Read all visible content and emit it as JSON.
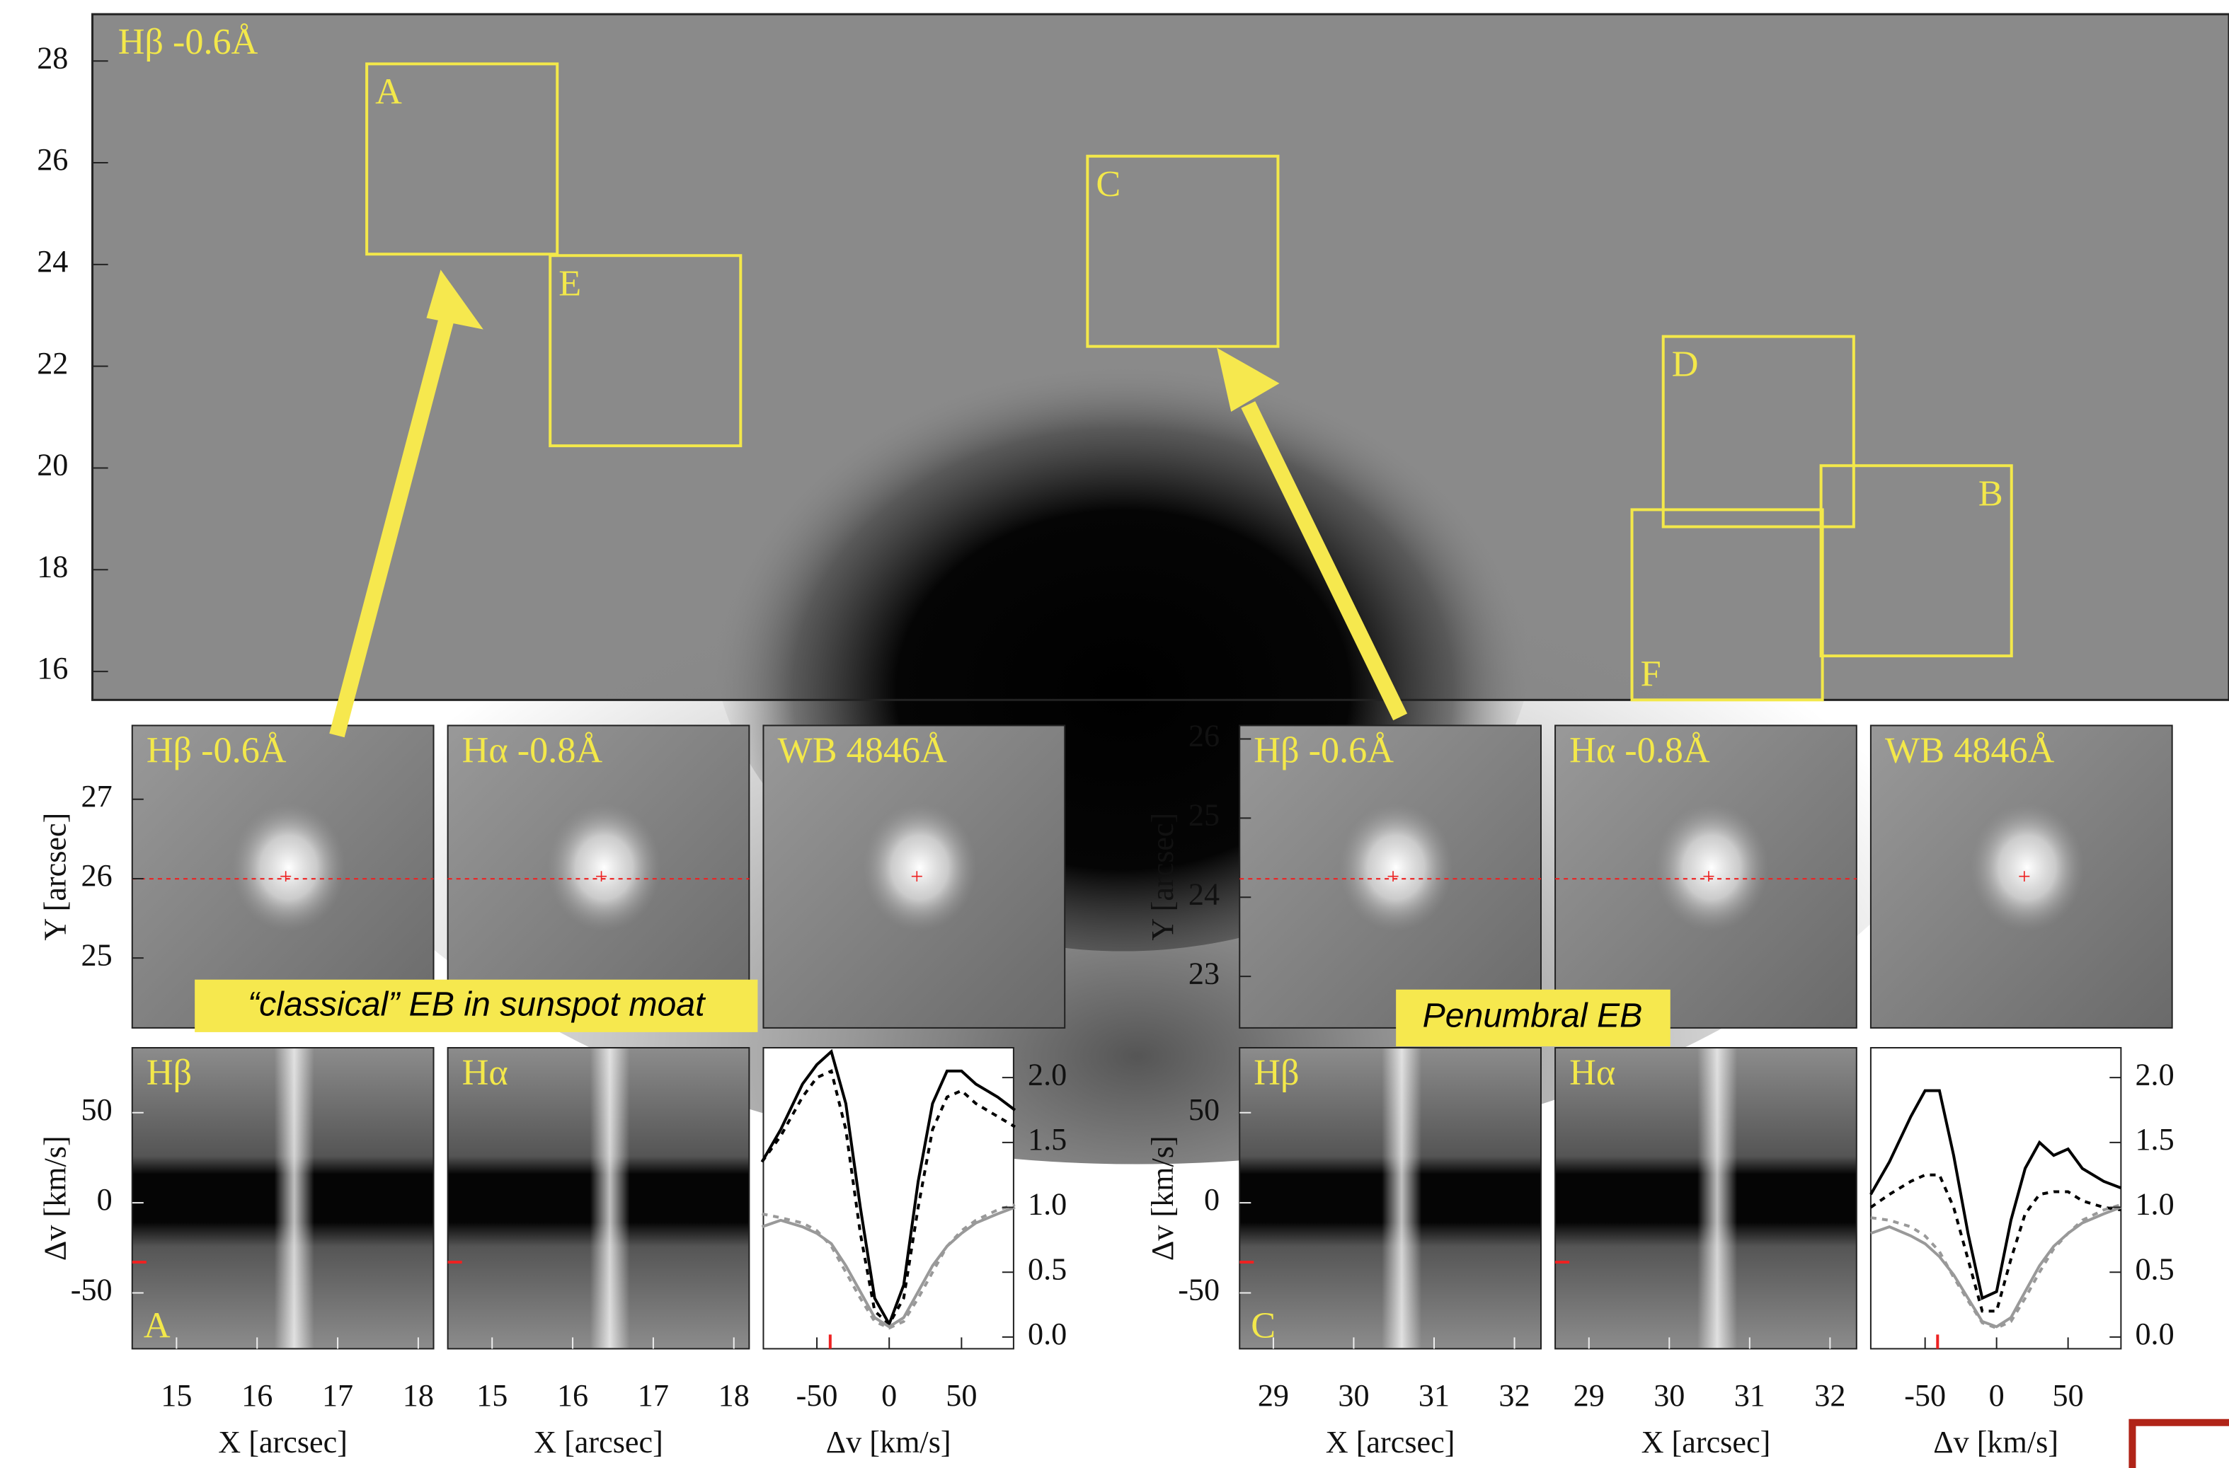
{
  "overview": {
    "label": "Hβ -0.6Å",
    "ylim": [
      15.44,
      28.92
    ],
    "yticks": [
      16,
      18,
      20,
      22,
      24,
      26,
      28
    ],
    "boxes": [
      "A",
      "E",
      "C",
      "D",
      "B",
      "F"
    ]
  },
  "groups": [
    {
      "images": [
        "Hβ -0.6Å",
        "Hα -0.8Å",
        "WB 4846Å"
      ],
      "ylabel": "Y [arcsec]",
      "ylim": [
        24.12,
        27.93
      ],
      "yticks": [
        25,
        26,
        27
      ],
      "xlabel": "X [arcsec]",
      "xlim": [
        14.45,
        18.19
      ],
      "xticks": [
        15,
        16,
        17,
        18
      ],
      "spectra": [
        "Hβ",
        "Hα"
      ],
      "box_label": "A",
      "dv_label": "Δv [km/s]",
      "dvlim": [
        -81,
        86
      ],
      "dvticks": [
        -50,
        0,
        50
      ],
      "callout": "“classical” EB in sunspot moat",
      "profile": {
        "xlabel": "Δv [km/s]",
        "xlim": [
          -87,
          86
        ],
        "xticks": [
          -50,
          0,
          50
        ],
        "ylim": [
          -0.09,
          2.23
        ],
        "yticks": [
          {
            "value": 0,
            "label": "0.0"
          },
          0.5,
          {
            "value": 1,
            "label": "1.0"
          },
          1.5,
          {
            "value": 2,
            "label": "2.0"
          }
        ],
        "x": [
          -88,
          -75,
          -60,
          -50,
          -40,
          -30,
          -20,
          -10,
          0,
          10,
          20,
          30,
          40,
          50,
          60,
          75,
          87
        ],
        "series": [
          {
            "color": "#000000",
            "dashed": false,
            "values": [
              1.35,
              1.6,
              1.95,
              2.1,
              2.2,
              1.8,
              1.0,
              0.3,
              0.1,
              0.4,
              1.2,
              1.8,
              2.05,
              2.05,
              1.95,
              1.85,
              1.75
            ]
          },
          {
            "color": "#000000",
            "dashed": true,
            "values": [
              1.35,
              1.55,
              1.85,
              2.0,
              2.05,
              1.6,
              0.8,
              0.2,
              0.1,
              0.3,
              1.0,
              1.6,
              1.85,
              1.9,
              1.8,
              1.7,
              1.62
            ]
          },
          {
            "color": "#999999",
            "dashed": false,
            "values": [
              0.85,
              0.9,
              0.85,
              0.8,
              0.72,
              0.55,
              0.35,
              0.15,
              0.08,
              0.15,
              0.35,
              0.55,
              0.7,
              0.8,
              0.88,
              0.95,
              1.0
            ]
          },
          {
            "color": "#999999",
            "dashed": true,
            "values": [
              0.95,
              0.92,
              0.88,
              0.82,
              0.7,
              0.5,
              0.3,
              0.12,
              0.07,
              0.12,
              0.3,
              0.5,
              0.7,
              0.82,
              0.9,
              0.98,
              1.02
            ]
          }
        ]
      }
    },
    {
      "images": [
        "Hβ -0.6Å",
        "Hα -0.8Å",
        "WB 4846Å"
      ],
      "ylabel": "Y [arcsec]",
      "ylim": [
        22.35,
        26.17
      ],
      "yticks": [
        23,
        24,
        25,
        26
      ],
      "xlabel": "X [arcsec]",
      "xlim": [
        28.58,
        32.33
      ],
      "xticks": [
        29,
        30,
        31,
        32
      ],
      "spectra": [
        "Hβ",
        "Hα"
      ],
      "box_label": "C",
      "dv_label": "Δv [km/s]",
      "dvlim": [
        -81,
        86
      ],
      "dvticks": [
        -50,
        0,
        50
      ],
      "callout": "Penumbral EB",
      "profile": {
        "xlabel": "Δv [km/s]",
        "xlim": [
          -88,
          87
        ],
        "xticks": [
          -50,
          0,
          50
        ],
        "ylim": [
          -0.09,
          2.23
        ],
        "yticks": [
          {
            "value": 0,
            "label": "0.0"
          },
          0.5,
          {
            "value": 1,
            "label": "1.0"
          },
          1.5,
          {
            "value": 2,
            "label": "2.0"
          }
        ],
        "x": [
          -88,
          -75,
          -60,
          -50,
          -40,
          -30,
          -20,
          -10,
          0,
          10,
          20,
          30,
          40,
          50,
          60,
          75,
          87
        ],
        "series": [
          {
            "color": "#000000",
            "dashed": false,
            "values": [
              1.1,
              1.35,
              1.7,
              1.9,
              1.9,
              1.4,
              0.8,
              0.3,
              0.35,
              0.9,
              1.3,
              1.5,
              1.4,
              1.45,
              1.3,
              1.2,
              1.15
            ]
          },
          {
            "color": "#000000",
            "dashed": true,
            "values": [
              1.0,
              1.1,
              1.2,
              1.25,
              1.25,
              1.0,
              0.6,
              0.2,
              0.2,
              0.6,
              0.95,
              1.1,
              1.12,
              1.12,
              1.05,
              1.0,
              0.98
            ]
          },
          {
            "color": "#999999",
            "dashed": false,
            "values": [
              0.8,
              0.85,
              0.78,
              0.72,
              0.62,
              0.48,
              0.3,
              0.12,
              0.08,
              0.15,
              0.35,
              0.55,
              0.7,
              0.8,
              0.88,
              0.95,
              1.0
            ]
          },
          {
            "color": "#999999",
            "dashed": true,
            "values": [
              0.92,
              0.9,
              0.85,
              0.78,
              0.66,
              0.46,
              0.28,
              0.11,
              0.07,
              0.12,
              0.3,
              0.5,
              0.68,
              0.8,
              0.9,
              0.98,
              1.02
            ]
          }
        ]
      }
    }
  ]
}
